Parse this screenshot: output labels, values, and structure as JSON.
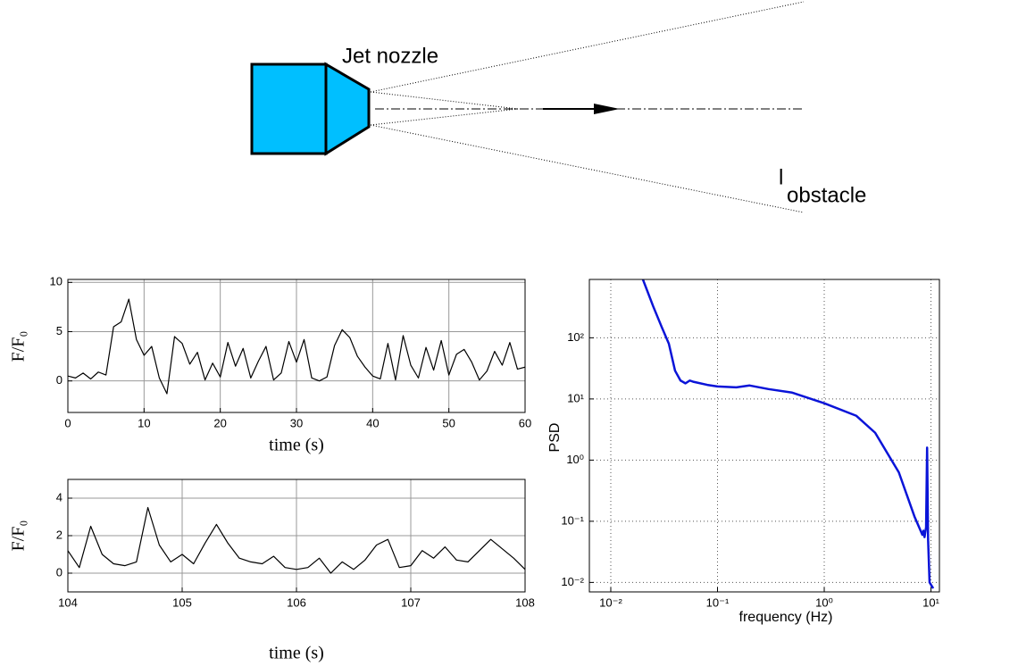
{
  "diagram": {
    "nozzle_label": "Jet nozzle",
    "obstacle_label": "l",
    "obstacle_subscript": "obstacle"
  },
  "chart_data": [
    {
      "type": "line",
      "x_label": "time (s)",
      "y_label": "F/F₀",
      "axis_label_color": "#e8413c",
      "color": "#000000",
      "grid": true,
      "x": [
        0,
        1,
        2,
        3,
        4,
        5,
        6,
        7,
        8,
        9,
        10,
        11,
        12,
        13,
        14,
        15,
        16,
        17,
        18,
        19,
        20,
        21,
        22,
        23,
        24,
        25,
        26,
        27,
        28,
        29,
        30,
        31,
        32,
        33,
        34,
        35,
        36,
        37,
        38,
        39,
        40,
        41,
        42,
        43,
        44,
        45,
        46,
        47,
        48,
        49,
        50,
        51,
        52,
        53,
        54,
        55,
        56,
        57,
        58,
        59,
        60
      ],
      "values": [
        0.5,
        0.3,
        0.8,
        0.2,
        0.9,
        0.6,
        5.5,
        6.0,
        8.3,
        4.2,
        2.6,
        3.5,
        0.3,
        -1.3,
        4.5,
        3.8,
        1.7,
        2.9,
        0.1,
        1.8,
        0.4,
        3.9,
        1.5,
        3.3,
        0.3,
        2.0,
        3.5,
        0.1,
        0.8,
        4.0,
        1.9,
        4.2,
        0.3,
        0.0,
        0.4,
        3.6,
        5.2,
        4.4,
        2.5,
        1.4,
        0.5,
        0.2,
        3.8,
        0.1,
        4.6,
        1.6,
        0.3,
        3.4,
        1.1,
        4.1,
        0.6,
        2.7,
        3.2,
        1.9,
        0.1,
        1.0,
        3.0,
        1.6,
        3.9,
        1.2,
        1.4
      ],
      "xlim": [
        0,
        60
      ],
      "ylim": [
        -3.2,
        10.3
      ],
      "xticks": [
        0,
        10,
        20,
        30,
        40,
        50,
        60
      ],
      "yticks": [
        0,
        5,
        10
      ]
    },
    {
      "type": "line",
      "x_label": "time (s)",
      "y_label": "F/F₀",
      "axis_label_color": "#e8413c",
      "color": "#000000",
      "grid": true,
      "x": [
        104.0,
        104.1,
        104.2,
        104.3,
        104.4,
        104.5,
        104.6,
        104.7,
        104.8,
        104.9,
        105.0,
        105.1,
        105.2,
        105.3,
        105.4,
        105.5,
        105.6,
        105.7,
        105.8,
        105.9,
        106.0,
        106.1,
        106.2,
        106.3,
        106.4,
        106.5,
        106.6,
        106.7,
        106.8,
        106.9,
        107.0,
        107.1,
        107.2,
        107.3,
        107.4,
        107.5,
        107.6,
        107.7,
        107.8,
        107.9,
        108.0
      ],
      "values": [
        1.2,
        0.3,
        2.5,
        1.0,
        0.5,
        0.4,
        0.6,
        3.5,
        1.5,
        0.6,
        1.0,
        0.5,
        1.6,
        2.6,
        1.6,
        0.8,
        0.6,
        0.5,
        0.9,
        0.3,
        0.2,
        0.3,
        0.8,
        0.0,
        0.6,
        0.2,
        0.7,
        1.5,
        1.8,
        0.3,
        0.4,
        1.2,
        0.8,
        1.4,
        0.7,
        0.6,
        1.2,
        1.8,
        1.3,
        0.8,
        0.2
      ],
      "xlim": [
        104,
        108
      ],
      "ylim": [
        -1,
        5
      ],
      "xticks": [
        104,
        105,
        106,
        107,
        108
      ],
      "yticks": [
        0,
        2,
        4
      ]
    },
    {
      "type": "line",
      "x_label": "frequency (Hz)",
      "y_label": "PSD",
      "axis_label_color": "#000000",
      "color": "#0a14d8",
      "grid": true,
      "xscale": "log",
      "yscale": "log",
      "x": [
        0.02,
        0.025,
        0.03,
        0.035,
        0.04,
        0.045,
        0.05,
        0.055,
        0.06,
        0.08,
        0.1,
        0.15,
        0.2,
        0.3,
        0.5,
        1,
        2,
        3,
        5,
        7,
        8,
        8.3,
        8.5,
        8.7,
        9,
        9.2,
        9.4,
        9.7,
        10.5
      ],
      "values": [
        900,
        325,
        150,
        80,
        29,
        20,
        18,
        20,
        19,
        17,
        16,
        15.5,
        16.6,
        14.5,
        12.7,
        8.5,
        5.3,
        2.8,
        0.63,
        0.12,
        0.07,
        0.06,
        0.07,
        0.055,
        0.08,
        1.6,
        0.05,
        0.01,
        0.008
      ],
      "xlim": [
        0.0063,
        12
      ],
      "ylim": [
        0.007,
        900
      ],
      "xticks": [
        {
          "value": 0.01,
          "label": "10⁻²"
        },
        {
          "value": 0.1,
          "label": "10⁻¹"
        },
        {
          "value": 1,
          "label": "10⁰"
        },
        {
          "value": 10,
          "label": "10¹"
        }
      ],
      "yticks": [
        {
          "value": 0.01,
          "label": "10⁻²"
        },
        {
          "value": 0.1,
          "label": "10⁻¹"
        },
        {
          "value": 1,
          "label": "10⁰"
        },
        {
          "value": 10,
          "label": "10¹"
        },
        {
          "value": 100,
          "label": "10²"
        }
      ]
    }
  ]
}
